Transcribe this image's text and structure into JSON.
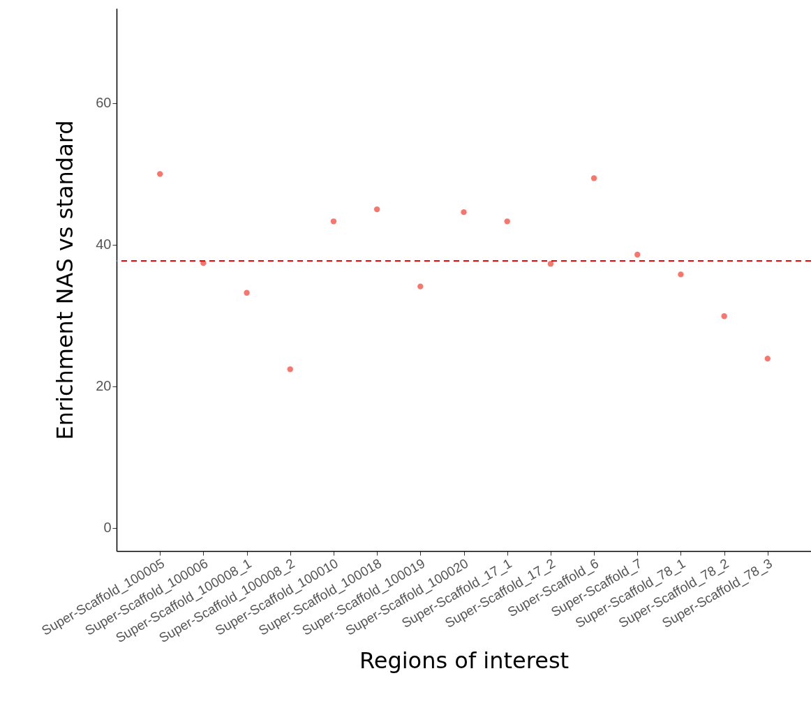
{
  "chart_data": {
    "type": "scatter",
    "xlabel": "Regions of interest",
    "ylabel": "Enrichment NAS vs standard",
    "categories": [
      "Super-Scaffold_100005",
      "Super-Scaffold_100006",
      "Super-Scaffold_100008_1",
      "Super-Scaffold_100008_2",
      "Super-Scaffold_100010",
      "Super-Scaffold_100018",
      "Super-Scaffold_100019",
      "Super-Scaffold_100020",
      "Super-Scaffold_17_1",
      "Super-Scaffold_17_2",
      "Super-Scaffold_6",
      "Super-Scaffold_7",
      "Super-Scaffold_78_1",
      "Super-Scaffold_78_2",
      "Super-Scaffold_78_3"
    ],
    "series": [
      {
        "color": "#f8766d",
        "values": [
          50,
          37.4,
          33.2,
          22.4,
          43.3,
          45.0,
          34.1,
          44.6,
          43.3,
          37.3,
          49.4,
          38.6,
          35.8,
          29.9,
          23.9
        ]
      }
    ],
    "ylim": [
      -3.3,
      73.4
    ],
    "yticks": [
      0,
      20,
      40,
      60
    ],
    "grid": false,
    "marker": "circle",
    "ref_lines": [
      {
        "axis": "y",
        "value": 37.7,
        "color": "#ff0000",
        "line_style": "dashed"
      }
    ]
  }
}
